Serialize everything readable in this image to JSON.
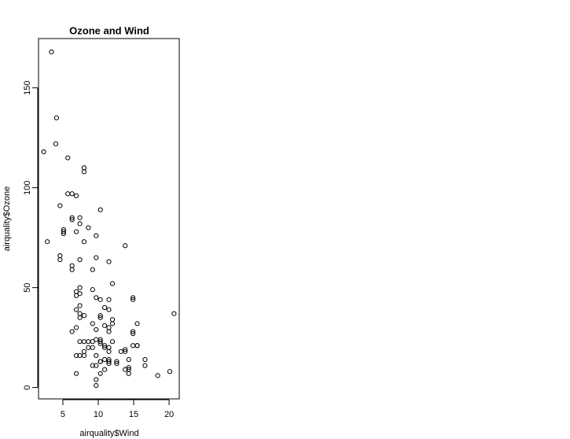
{
  "chart_data": {
    "type": "scatter",
    "title": "Ozone and Wind",
    "x_label": "airquality$Wind",
    "y_label": "airquality$Ozone",
    "color": "#000000",
    "x": [
      7.4,
      8.0,
      12.6,
      11.5,
      14.9,
      8.6,
      13.8,
      20.1,
      6.9,
      9.7,
      9.2,
      10.9,
      13.2,
      11.5,
      12.0,
      18.4,
      11.5,
      9.7,
      9.7,
      16.6,
      9.7,
      12.0,
      12.0,
      14.9,
      5.7,
      7.4,
      9.7,
      13.8,
      11.5,
      8.0,
      14.9,
      20.7,
      9.2,
      11.5,
      10.3,
      4.1,
      9.2,
      9.2,
      4.6,
      10.9,
      5.1,
      6.3,
      5.7,
      7.4,
      14.3,
      14.9,
      14.3,
      6.9,
      10.3,
      6.3,
      5.1,
      11.5,
      6.9,
      8.6,
      8.0,
      8.6,
      12.0,
      7.4,
      7.4,
      7.4,
      9.2,
      6.9,
      13.8,
      7.4,
      6.9,
      7.4,
      4.6,
      4.0,
      10.3,
      8.0,
      11.5,
      11.5,
      9.7,
      10.3,
      6.3,
      7.4,
      10.9,
      10.3,
      15.5,
      14.3,
      9.7,
      3.4,
      8.0,
      9.7,
      2.3,
      6.3,
      6.3,
      6.9,
      5.1,
      2.8,
      4.6,
      7.4,
      15.5,
      10.9,
      10.3,
      10.9,
      9.7,
      14.9,
      15.5,
      6.3,
      10.9,
      11.5,
      6.9,
      13.8,
      10.3,
      10.3,
      8.0,
      12.6,
      9.2,
      10.3,
      10.3,
      16.6,
      6.9,
      14.3,
      8.0,
      11.5
    ],
    "values": [
      41,
      36,
      12,
      18,
      28,
      23,
      19,
      8,
      7,
      16,
      11,
      14,
      18,
      14,
      34,
      6,
      30,
      11,
      1,
      11,
      4,
      32,
      23,
      45,
      115,
      37,
      29,
      71,
      39,
      23,
      21,
      37,
      20,
      12,
      13,
      135,
      49,
      32,
      64,
      40,
      77,
      97,
      97,
      85,
      10,
      27,
      7,
      48,
      35,
      61,
      79,
      63,
      16,
      80,
      108,
      20,
      52,
      82,
      50,
      64,
      59,
      39,
      9,
      16,
      78,
      35,
      66,
      122,
      89,
      110,
      44,
      28,
      65,
      22,
      59,
      23,
      31,
      44,
      21,
      9,
      45,
      168,
      73,
      76,
      118,
      84,
      85,
      96,
      78,
      73,
      91,
      47,
      32,
      20,
      23,
      21,
      24,
      44,
      21,
      28,
      9,
      13,
      46,
      18,
      13,
      24,
      16,
      13,
      23,
      36,
      7,
      14,
      30,
      14,
      18,
      20
    ],
    "xlim": [
      1.564,
      21.436
    ],
    "ylim": [
      -5.68,
      174.68
    ],
    "xticks": [
      5,
      10,
      15,
      20
    ],
    "yticks": [
      0,
      50,
      100,
      150
    ]
  }
}
